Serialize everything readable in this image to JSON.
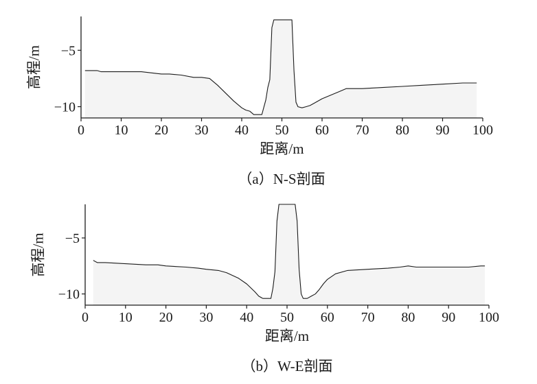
{
  "chart_data": [
    {
      "type": "area",
      "caption": "（a）N-S剖面",
      "xlabel": "距离/m",
      "ylabel": "高程/m",
      "xlim": [
        0,
        100
      ],
      "ylim": [
        -11,
        -2
      ],
      "xticks": [
        0,
        10,
        20,
        30,
        40,
        50,
        60,
        70,
        80,
        90,
        100
      ],
      "yticks": [
        -10,
        -5
      ],
      "grid": false,
      "x": [
        1,
        4,
        5,
        10,
        15,
        20,
        22,
        25,
        28,
        30,
        32,
        34,
        36,
        38,
        40,
        41,
        42,
        43,
        45,
        46,
        46.5,
        47,
        47.5,
        48,
        52.5,
        53,
        53.5,
        54,
        55,
        56,
        57,
        58,
        60,
        62,
        64,
        66,
        70,
        75,
        80,
        85,
        90,
        95,
        98.5
      ],
      "y": [
        -6.8,
        -6.8,
        -6.9,
        -6.9,
        -6.9,
        -7.1,
        -7.1,
        -7.2,
        -7.4,
        -7.4,
        -7.5,
        -8.1,
        -8.8,
        -9.5,
        -10.1,
        -10.3,
        -10.4,
        -10.7,
        -10.7,
        -9.4,
        -8.3,
        -7.6,
        -3.0,
        -2.3,
        -2.3,
        -6.8,
        -9.6,
        -10.0,
        -10.1,
        -10.0,
        -9.9,
        -9.7,
        -9.3,
        -9.0,
        -8.7,
        -8.4,
        -8.4,
        -8.3,
        -8.2,
        -8.1,
        -8.0,
        -7.9,
        -7.9
      ]
    },
    {
      "type": "area",
      "caption": "（b）W-E剖面",
      "xlabel": "距离/m",
      "ylabel": "高程/m",
      "xlim": [
        0,
        100
      ],
      "ylim": [
        -11,
        -2
      ],
      "xticks": [
        0,
        10,
        20,
        30,
        40,
        50,
        60,
        70,
        80,
        90,
        100
      ],
      "yticks": [
        -10,
        -5
      ],
      "grid": false,
      "x": [
        2,
        3,
        5,
        10,
        15,
        18,
        20,
        25,
        28,
        30,
        33,
        35,
        38,
        40,
        42,
        43,
        44,
        46,
        46.5,
        47,
        47.5,
        48,
        52,
        52.5,
        53,
        53.5,
        54,
        55,
        56,
        57,
        58,
        59,
        60,
        62,
        65,
        70,
        75,
        78,
        80,
        82,
        85,
        90,
        95,
        98,
        99
      ],
      "y": [
        -7.0,
        -7.2,
        -7.2,
        -7.3,
        -7.4,
        -7.4,
        -7.5,
        -7.6,
        -7.7,
        -7.8,
        -7.9,
        -8.1,
        -8.6,
        -9.1,
        -9.8,
        -10.2,
        -10.4,
        -10.4,
        -9.5,
        -8.0,
        -3.5,
        -2.0,
        -2.0,
        -3.5,
        -7.8,
        -10.0,
        -10.4,
        -10.4,
        -10.2,
        -10.0,
        -9.6,
        -9.1,
        -8.7,
        -8.2,
        -7.9,
        -7.8,
        -7.7,
        -7.6,
        -7.5,
        -7.6,
        -7.6,
        -7.6,
        -7.6,
        -7.5,
        -7.5
      ]
    }
  ]
}
